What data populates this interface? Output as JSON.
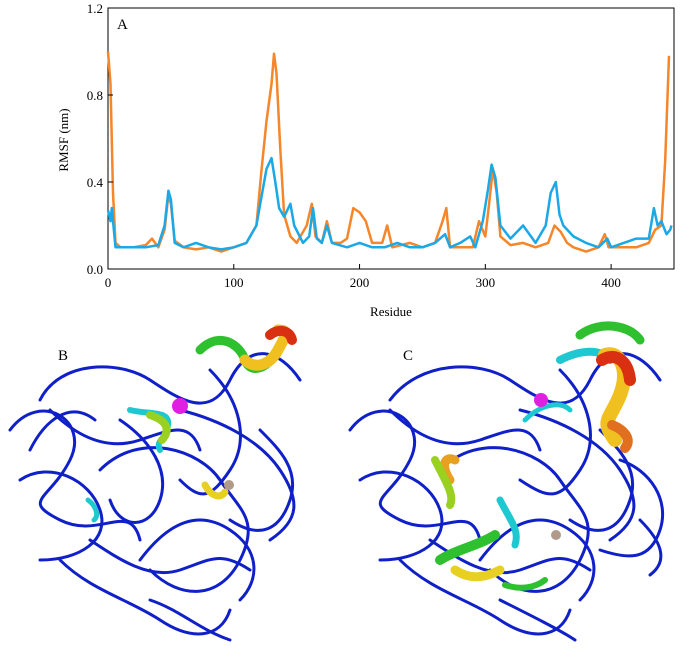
{
  "panels": {
    "a": "A",
    "b": "B",
    "c": "C"
  },
  "colors": {
    "orange": "#F5862A",
    "blue": "#1BA8E6",
    "backbone": "#1020C8",
    "magenta": "#E020E0",
    "ion": "#B09A8C"
  },
  "chart_data": {
    "type": "line",
    "xlabel": "Residue",
    "ylabel": "RMSF (nm)",
    "xlim": [
      0,
      450
    ],
    "ylim": [
      0.0,
      1.2
    ],
    "xticks": [
      0,
      100,
      200,
      300,
      400
    ],
    "yticks": [
      0.0,
      0.4,
      0.8,
      1.2
    ],
    "ytick_labels": [
      "0.0",
      "0.4",
      "0.8",
      "1.2"
    ],
    "grid": false,
    "series": [
      {
        "color": "#F5862A",
        "points": [
          [
            0,
            1.0
          ],
          [
            2,
            0.85
          ],
          [
            4,
            0.35
          ],
          [
            6,
            0.12
          ],
          [
            10,
            0.1
          ],
          [
            20,
            0.1
          ],
          [
            30,
            0.11
          ],
          [
            35,
            0.14
          ],
          [
            40,
            0.1
          ],
          [
            45,
            0.18
          ],
          [
            48,
            0.34
          ],
          [
            50,
            0.3
          ],
          [
            53,
            0.13
          ],
          [
            60,
            0.1
          ],
          [
            70,
            0.09
          ],
          [
            80,
            0.1
          ],
          [
            90,
            0.08
          ],
          [
            100,
            0.1
          ],
          [
            110,
            0.12
          ],
          [
            118,
            0.2
          ],
          [
            122,
            0.45
          ],
          [
            126,
            0.68
          ],
          [
            130,
            0.85
          ],
          [
            132,
            0.99
          ],
          [
            134,
            0.9
          ],
          [
            137,
            0.55
          ],
          [
            140,
            0.25
          ],
          [
            145,
            0.15
          ],
          [
            150,
            0.12
          ],
          [
            158,
            0.2
          ],
          [
            162,
            0.3
          ],
          [
            165,
            0.15
          ],
          [
            170,
            0.12
          ],
          [
            174,
            0.22
          ],
          [
            178,
            0.12
          ],
          [
            185,
            0.12
          ],
          [
            190,
            0.14
          ],
          [
            195,
            0.28
          ],
          [
            200,
            0.26
          ],
          [
            205,
            0.22
          ],
          [
            210,
            0.12
          ],
          [
            218,
            0.12
          ],
          [
            222,
            0.2
          ],
          [
            226,
            0.1
          ],
          [
            240,
            0.12
          ],
          [
            250,
            0.1
          ],
          [
            260,
            0.12
          ],
          [
            266,
            0.22
          ],
          [
            269,
            0.28
          ],
          [
            272,
            0.1
          ],
          [
            285,
            0.1
          ],
          [
            290,
            0.1
          ],
          [
            295,
            0.22
          ],
          [
            300,
            0.15
          ],
          [
            303,
            0.3
          ],
          [
            306,
            0.46
          ],
          [
            309,
            0.35
          ],
          [
            312,
            0.15
          ],
          [
            320,
            0.11
          ],
          [
            330,
            0.12
          ],
          [
            340,
            0.1
          ],
          [
            350,
            0.12
          ],
          [
            355,
            0.2
          ],
          [
            360,
            0.17
          ],
          [
            365,
            0.12
          ],
          [
            370,
            0.1
          ],
          [
            380,
            0.08
          ],
          [
            390,
            0.1
          ],
          [
            395,
            0.16
          ],
          [
            398,
            0.1
          ],
          [
            410,
            0.1
          ],
          [
            420,
            0.1
          ],
          [
            430,
            0.12
          ],
          [
            435,
            0.18
          ],
          [
            440,
            0.2
          ],
          [
            443,
            0.5
          ],
          [
            446,
            0.98
          ]
        ]
      },
      {
        "color": "#1BA8E6",
        "points": [
          [
            0,
            0.27
          ],
          [
            2,
            0.22
          ],
          [
            3,
            0.28
          ],
          [
            6,
            0.1
          ],
          [
            10,
            0.1
          ],
          [
            20,
            0.1
          ],
          [
            30,
            0.1
          ],
          [
            40,
            0.11
          ],
          [
            45,
            0.2
          ],
          [
            48,
            0.36
          ],
          [
            50,
            0.32
          ],
          [
            53,
            0.12
          ],
          [
            60,
            0.1
          ],
          [
            70,
            0.12
          ],
          [
            80,
            0.1
          ],
          [
            90,
            0.09
          ],
          [
            100,
            0.1
          ],
          [
            110,
            0.12
          ],
          [
            118,
            0.2
          ],
          [
            122,
            0.33
          ],
          [
            126,
            0.46
          ],
          [
            130,
            0.51
          ],
          [
            133,
            0.4
          ],
          [
            136,
            0.28
          ],
          [
            140,
            0.24
          ],
          [
            145,
            0.3
          ],
          [
            148,
            0.2
          ],
          [
            155,
            0.12
          ],
          [
            160,
            0.15
          ],
          [
            163,
            0.28
          ],
          [
            166,
            0.14
          ],
          [
            170,
            0.12
          ],
          [
            174,
            0.2
          ],
          [
            178,
            0.12
          ],
          [
            190,
            0.1
          ],
          [
            200,
            0.12
          ],
          [
            210,
            0.1
          ],
          [
            220,
            0.1
          ],
          [
            230,
            0.12
          ],
          [
            240,
            0.1
          ],
          [
            250,
            0.1
          ],
          [
            260,
            0.12
          ],
          [
            268,
            0.16
          ],
          [
            272,
            0.1
          ],
          [
            280,
            0.12
          ],
          [
            288,
            0.15
          ],
          [
            292,
            0.1
          ],
          [
            298,
            0.22
          ],
          [
            302,
            0.36
          ],
          [
            305,
            0.48
          ],
          [
            308,
            0.42
          ],
          [
            312,
            0.2
          ],
          [
            320,
            0.14
          ],
          [
            330,
            0.2
          ],
          [
            340,
            0.12
          ],
          [
            348,
            0.2
          ],
          [
            352,
            0.35
          ],
          [
            356,
            0.4
          ],
          [
            359,
            0.25
          ],
          [
            362,
            0.2
          ],
          [
            370,
            0.15
          ],
          [
            380,
            0.12
          ],
          [
            390,
            0.1
          ],
          [
            397,
            0.14
          ],
          [
            400,
            0.1
          ],
          [
            410,
            0.12
          ],
          [
            420,
            0.14
          ],
          [
            430,
            0.14
          ],
          [
            434,
            0.28
          ],
          [
            437,
            0.2
          ],
          [
            440,
            0.22
          ],
          [
            444,
            0.16
          ],
          [
            447,
            0.18
          ],
          [
            448,
            0.2
          ]
        ]
      }
    ]
  }
}
